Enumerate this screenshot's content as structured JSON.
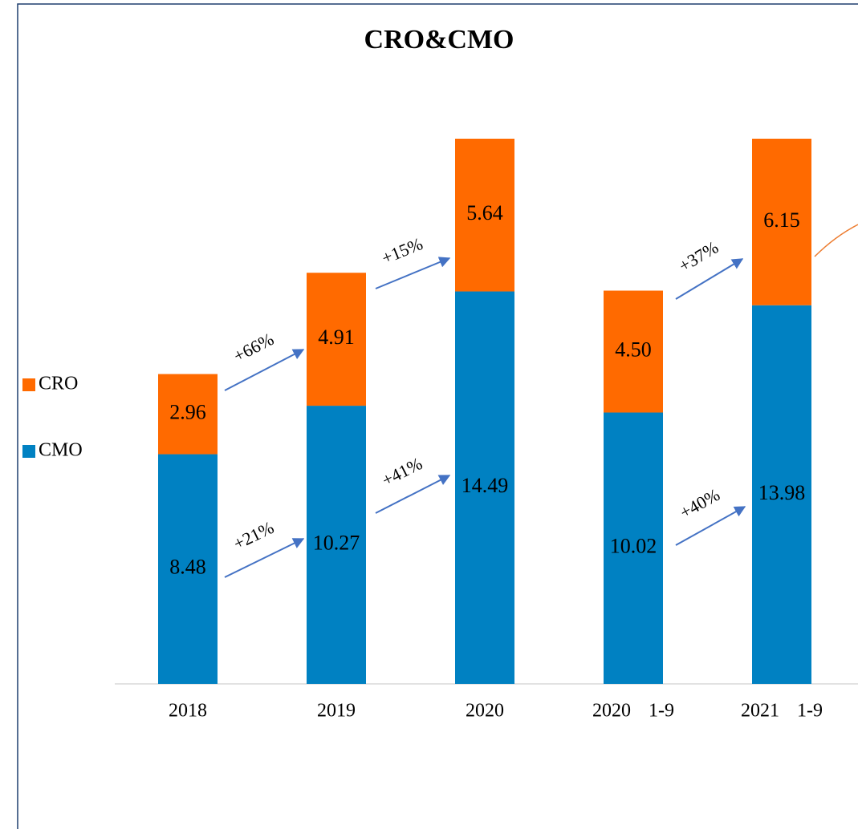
{
  "chart_data": {
    "type": "bar",
    "stacked": true,
    "title": "CRO&CMO",
    "categories": [
      "2018",
      "2019",
      "2020",
      "2020 1-9",
      "2021 1-9"
    ],
    "series": [
      {
        "name": "CMO",
        "color": "#0081c2",
        "values": [
          8.48,
          10.27,
          14.49,
          10.02,
          13.98
        ],
        "value_labels": [
          "8.48",
          "10.27",
          "14.49",
          "10.02",
          "13.98"
        ]
      },
      {
        "name": "CRO",
        "color": "#ff6a00",
        "values": [
          2.96,
          4.91,
          5.64,
          4.5,
          6.15
        ],
        "value_labels": [
          "2.96",
          "4.91",
          "5.64",
          "4.50",
          "6.15"
        ]
      }
    ],
    "annotations": [
      "+66%",
      "+21%",
      "+15%",
      "+41%",
      "+37%",
      "+40%"
    ],
    "legend": "left"
  }
}
